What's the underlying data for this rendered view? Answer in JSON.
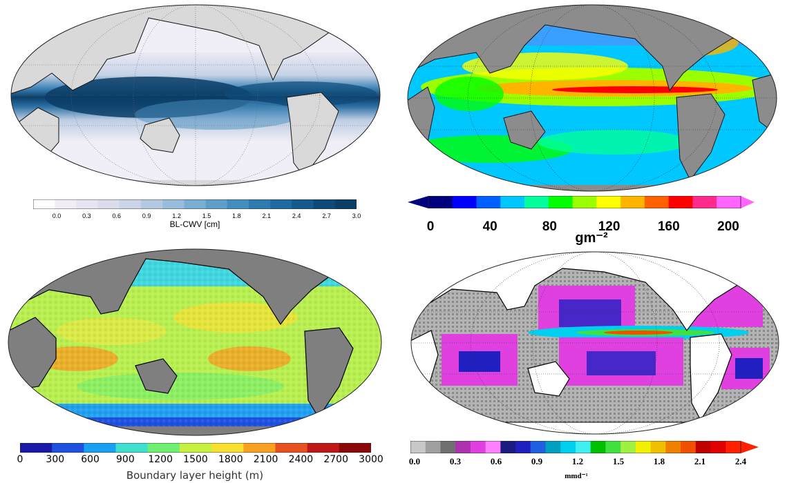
{
  "panels": [
    {
      "id": "bl-cwv",
      "colorbar": {
        "ticks": [
          "0.0",
          "0.3",
          "0.6",
          "0.9",
          "1.2",
          "1.5",
          "1.8",
          "2.1",
          "2.4",
          "2.7",
          "3.0"
        ],
        "title": "BL-CWV [cm]",
        "colors": [
          "#ffffff",
          "#f3eef6",
          "#e7e5f1",
          "#dbdcec",
          "#cad4e8",
          "#b3c9e1",
          "#98bcdb",
          "#7aaed2",
          "#5e9ec8",
          "#428dbd",
          "#2e7cb0",
          "#1f6aa0",
          "#155a8d",
          "#0e4a78",
          "#0b3d66"
        ]
      }
    },
    {
      "id": "lwp",
      "colorbar": {
        "ticks": [
          "0",
          "40",
          "80",
          "120",
          "160",
          "200"
        ],
        "title": "gm⁻²",
        "colors": [
          "#00007f",
          "#0000ff",
          "#0060ff",
          "#00c8ff",
          "#00ff9c",
          "#00ff00",
          "#9cff00",
          "#ffff00",
          "#ffb400",
          "#ff6000",
          "#ff0000",
          "#ff2a8c",
          "#ff66ff"
        ]
      }
    },
    {
      "id": "blh",
      "colorbar": {
        "ticks": [
          "0",
          "300",
          "600",
          "900",
          "1200",
          "1500",
          "1800",
          "2100",
          "2400",
          "2700",
          "3000"
        ],
        "title": "Boundary layer height (m)",
        "colors": [
          "#1a1aa8",
          "#2050e0",
          "#1aa0f0",
          "#40e0d0",
          "#70f070",
          "#c8f040",
          "#f8e030",
          "#f8a020",
          "#e85020",
          "#c01818",
          "#8a0808"
        ]
      }
    },
    {
      "id": "precip",
      "colorbar": {
        "ticks": [
          "0.0",
          "0.3",
          "0.6",
          "0.9",
          "1.2",
          "1.5",
          "1.8",
          "2.1",
          "2.4"
        ],
        "title": "mmd⁻¹",
        "colors": [
          "#c8c8c8",
          "#a0a0a0",
          "#707070",
          "#b030b0",
          "#e040e0",
          "#ff80ff",
          "#1a1a80",
          "#2020c0",
          "#2060e0",
          "#00a0c0",
          "#00d0f0",
          "#40f0f0",
          "#00c000",
          "#40e040",
          "#a0f040",
          "#f0f000",
          "#f0c000",
          "#f08000",
          "#f05000",
          "#c00000",
          "#e00000",
          "#ff2000"
        ]
      }
    }
  ]
}
